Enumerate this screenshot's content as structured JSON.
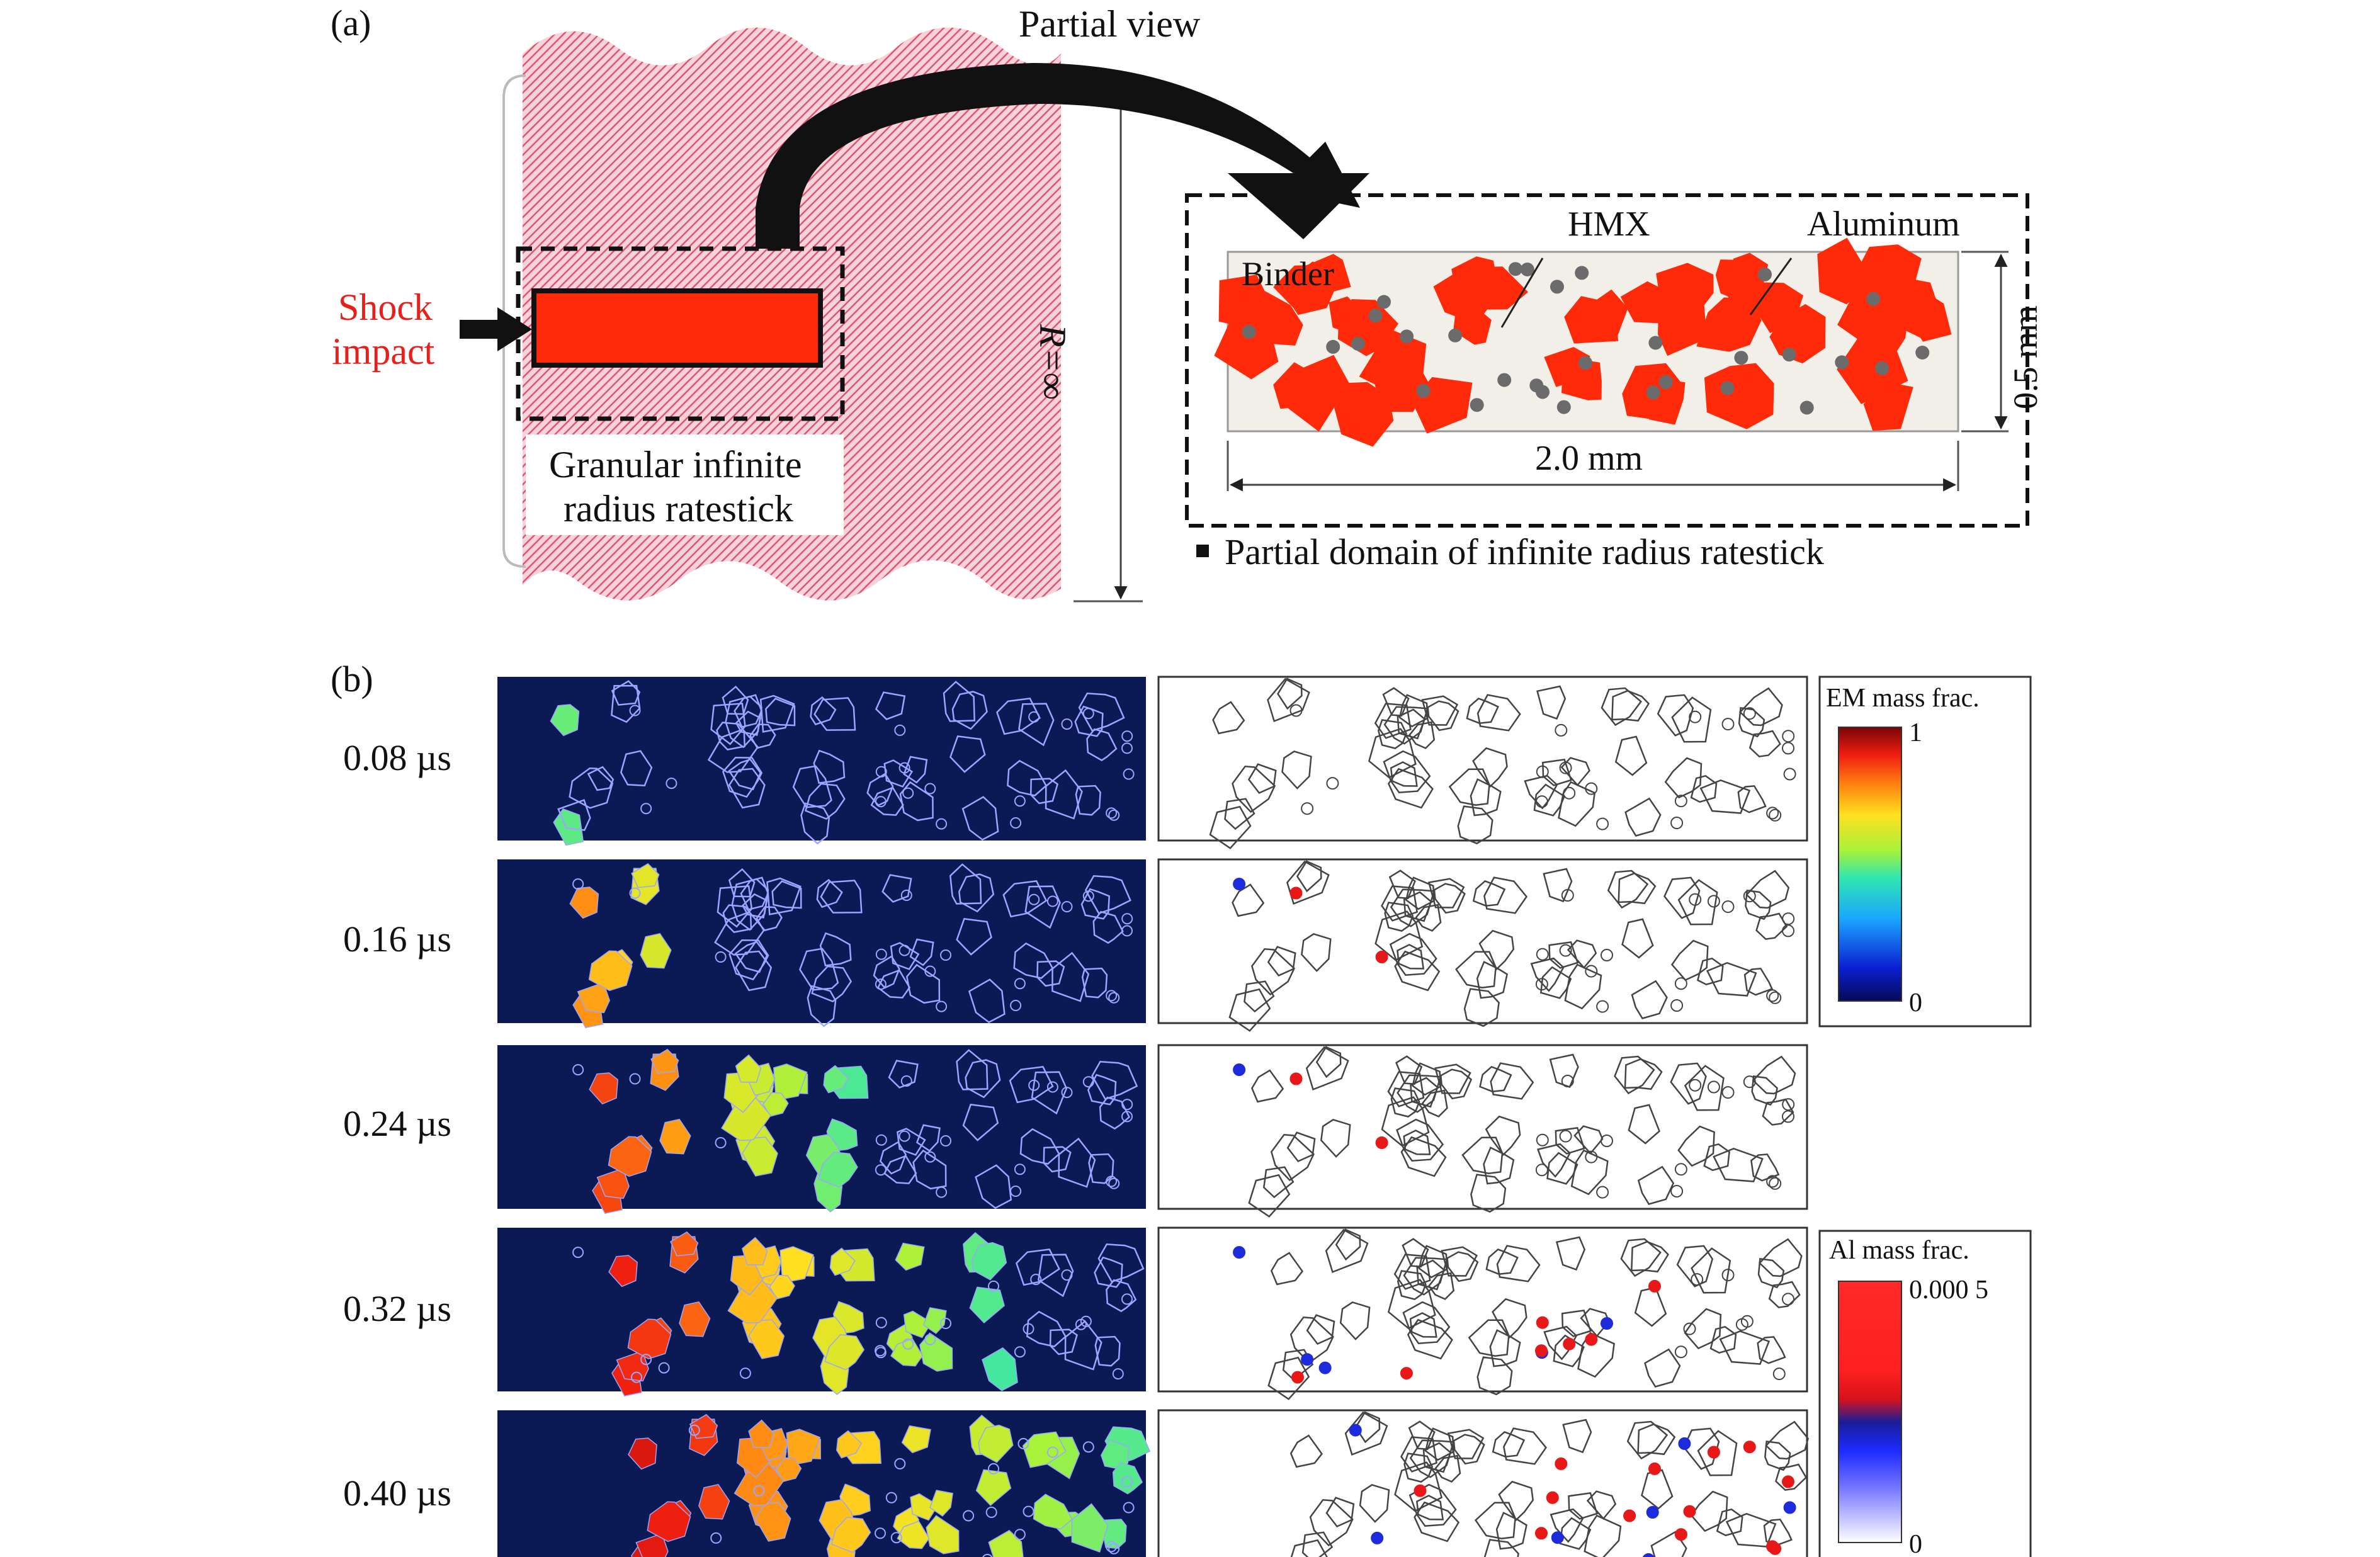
{
  "panel_a": {
    "label": "(a)",
    "partial_view": "Partial view",
    "shock_line1": "Shock",
    "shock_line2": "impact",
    "r_label": "R=∞",
    "stick_line1": "Granular infinite",
    "stick_line2": "radius ratestick",
    "binder": "Binder",
    "hmx": "HMX",
    "aluminum": "Aluminum",
    "dim_width": "2.0 mm",
    "dim_height": "0.5 mm",
    "caption": "Partial domain of infinite radius ratestick",
    "colors": {
      "hmx": "#ff2a0a",
      "ratestick": "#e8889a",
      "aluminum": "#6b6b6b",
      "binder": "#f1efe8"
    }
  },
  "panel_b": {
    "label": "(b)",
    "times": [
      "0.08 µs",
      "0.16 µs",
      "0.24 µs",
      "0.32 µs",
      "0.40 µs"
    ],
    "em_colorbar": {
      "title": "EM mass frac.",
      "max": "1",
      "min": "0"
    },
    "al_colorbar": {
      "title": "Al mass frac.",
      "max": "0.000 5",
      "min": "0"
    },
    "colors": {
      "background": "#0b1a55",
      "outline_dark": "#9aa6ff",
      "outline_light": "#444444"
    }
  }
}
